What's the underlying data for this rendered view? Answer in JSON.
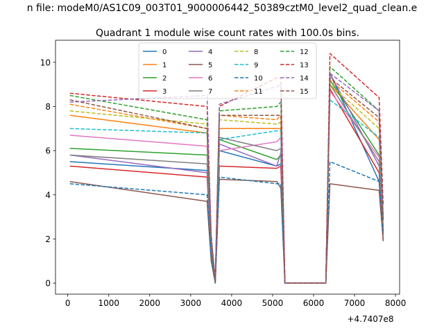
{
  "figure": {
    "suptitle": "n file: modeM0/AS1C09_003T01_9000006442_50389cztM0_level2_quad_clean.e",
    "title": "Quadrant 1 module wise count rates with 100.0s bins.",
    "x_offset_label": "+4.7407e8"
  },
  "chart_data": {
    "type": "line",
    "title": "Quadrant 1 module wise count rates with 100.0s bins.",
    "xlabel": "",
    "ylabel": "",
    "x_offset": "+4.7407e8",
    "xlim": [
      -300,
      8100
    ],
    "ylim": [
      -0.5,
      11
    ],
    "xticks": [
      0,
      1000,
      2000,
      3000,
      4000,
      5000,
      6000,
      7000,
      8000
    ],
    "yticks": [
      0,
      2,
      4,
      6,
      8,
      10
    ],
    "grid": false,
    "legend": "upper-center",
    "x": [
      50,
      3400,
      3500,
      3600,
      3700,
      5100,
      5200,
      5300,
      6200,
      6300,
      6400,
      7600,
      7700
    ],
    "series": [
      {
        "name": "0",
        "color": "#1f77b4",
        "dash": "solid",
        "values": [
          5.5,
          5.1,
          1.5,
          0.1,
          6.0,
          5.3,
          5.4,
          0,
          0,
          0,
          9.5,
          4.6,
          2.2
        ]
      },
      {
        "name": "1",
        "color": "#ff7f0e",
        "dash": "solid",
        "values": [
          7.6,
          6.8,
          1.8,
          0.1,
          7.0,
          7.0,
          7.0,
          0,
          0,
          0,
          9.0,
          6.5,
          2.5
        ]
      },
      {
        "name": "2",
        "color": "#2ca02c",
        "dash": "solid",
        "values": [
          6.1,
          5.8,
          1.6,
          0.1,
          6.5,
          5.6,
          5.8,
          0,
          0,
          0,
          9.2,
          5.8,
          2.4
        ]
      },
      {
        "name": "3",
        "color": "#d62728",
        "dash": "solid",
        "values": [
          5.3,
          4.8,
          1.4,
          0.1,
          5.3,
          5.2,
          5.3,
          0,
          0,
          0,
          8.8,
          5.0,
          1.9
        ]
      },
      {
        "name": "4",
        "color": "#9467bd",
        "dash": "solid",
        "values": [
          5.8,
          5.0,
          1.5,
          0.1,
          6.3,
          5.3,
          5.9,
          0,
          0,
          0,
          9.5,
          5.3,
          2.5
        ]
      },
      {
        "name": "5",
        "color": "#8c564b",
        "dash": "solid",
        "values": [
          4.6,
          3.7,
          1.0,
          0.0,
          4.7,
          4.6,
          4.3,
          0,
          0,
          0,
          4.5,
          4.2,
          1.9
        ]
      },
      {
        "name": "6",
        "color": "#e377c2",
        "dash": "solid",
        "values": [
          6.7,
          6.2,
          1.8,
          0.1,
          6.0,
          6.4,
          6.6,
          0,
          0,
          0,
          8.7,
          5.7,
          2.3
        ]
      },
      {
        "name": "7",
        "color": "#7f7f7f",
        "dash": "solid",
        "values": [
          5.8,
          5.4,
          1.6,
          0.1,
          6.6,
          6.0,
          6.1,
          0,
          0,
          0,
          9.0,
          5.5,
          2.4
        ]
      },
      {
        "name": "8",
        "color": "#bcbd22",
        "dash": "dashed",
        "values": [
          7.8,
          7.2,
          2.0,
          0.1,
          7.4,
          7.2,
          7.3,
          0,
          0,
          0,
          9.0,
          7.0,
          2.6
        ]
      },
      {
        "name": "9",
        "color": "#17becf",
        "dash": "dashed",
        "values": [
          7.0,
          6.8,
          1.9,
          0.1,
          6.5,
          6.9,
          6.9,
          0,
          0,
          0,
          8.3,
          6.6,
          2.6
        ]
      },
      {
        "name": "10",
        "color": "#1f77b4",
        "dash": "dashed",
        "values": [
          4.5,
          4.0,
          1.2,
          0.0,
          4.8,
          4.5,
          4.5,
          0,
          0,
          0,
          5.5,
          4.6,
          2.3
        ]
      },
      {
        "name": "11",
        "color": "#ff7f0e",
        "dash": "dashed",
        "values": [
          8.1,
          7.0,
          2.0,
          0.1,
          7.6,
          7.4,
          7.6,
          0,
          0,
          0,
          9.2,
          7.3,
          2.7
        ]
      },
      {
        "name": "12",
        "color": "#2ca02c",
        "dash": "dashed",
        "values": [
          8.5,
          7.4,
          2.0,
          0.1,
          7.8,
          8.0,
          8.2,
          0,
          0,
          0,
          9.8,
          7.8,
          2.9
        ]
      },
      {
        "name": "13",
        "color": "#d62728",
        "dash": "dashed",
        "values": [
          8.6,
          8.0,
          2.2,
          0.1,
          8.0,
          9.3,
          9.3,
          0,
          0,
          0,
          10.4,
          8.4,
          3.5
        ]
      },
      {
        "name": "14",
        "color": "#9467bd",
        "dash": "dashed",
        "values": [
          8.2,
          8.5,
          2.2,
          0.1,
          8.1,
          8.9,
          9.0,
          0,
          0,
          0,
          9.5,
          7.8,
          3.0
        ]
      },
      {
        "name": "15",
        "color": "#8c564b",
        "dash": "dashed",
        "values": [
          8.3,
          7.0,
          2.0,
          0.1,
          7.6,
          7.6,
          7.6,
          0,
          0,
          0,
          9.3,
          7.5,
          2.8
        ]
      }
    ]
  }
}
